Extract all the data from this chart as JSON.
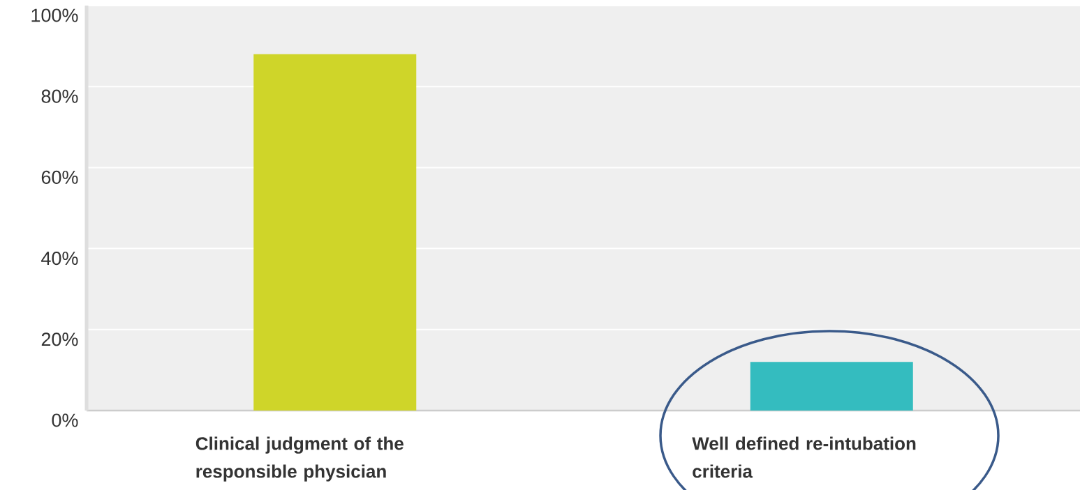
{
  "chart_data": {
    "type": "bar",
    "categories": [
      "Clinical judgment of the responsible physician",
      "Well defined re-intubation criteria"
    ],
    "values": [
      88,
      12
    ],
    "colors": [
      "#cfd529",
      "#34bcbf"
    ],
    "ylim": [
      0,
      100
    ],
    "yticks": [
      {
        "value": 0,
        "label": "0%"
      },
      {
        "value": 20,
        "label": "20%"
      },
      {
        "value": 40,
        "label": "40%"
      },
      {
        "value": 60,
        "label": "60%"
      },
      {
        "value": 80,
        "label": "80%"
      },
      {
        "value": 100,
        "label": "100%"
      }
    ],
    "grid": "y"
  }
}
